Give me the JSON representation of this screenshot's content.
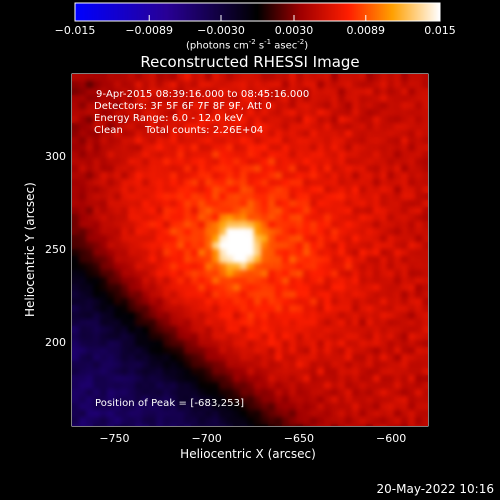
{
  "colorbar": {
    "ticks": [
      "-0.015",
      "-0.0089",
      "-0.0030",
      "0.0030",
      "0.0089",
      "0.015"
    ],
    "tick_values": [
      -0.015,
      -0.0089,
      -0.003,
      0.003,
      0.0089,
      0.015
    ],
    "label_main": "(photons cm",
    "label_exp1": "-2",
    "label_mid1": " s",
    "label_exp2": "-1",
    "label_mid2": " asec",
    "label_exp3": "-2",
    "label_end": ")",
    "range": [
      -0.015,
      0.015
    ],
    "colormap": "RHESSI red-yellow"
  },
  "chart_data": {
    "type": "heatmap",
    "title": "Reconstructed RHESSI Image",
    "xlabel": "Heliocentric X (arcsec)",
    "ylabel": "Heliocentric Y (arcsec)",
    "xlim": [
      -773,
      -580
    ],
    "ylim": [
      155,
      345
    ],
    "x_ticks": [
      -750,
      -700,
      -650,
      -600
    ],
    "x_tick_labels": [
      "−750",
      "−700",
      "−650",
      "−600"
    ],
    "y_ticks": [
      200,
      250,
      300
    ],
    "y_tick_labels": [
      "200",
      "250",
      "300"
    ],
    "peak": {
      "x": -683,
      "y": 253
    },
    "grid": false
  },
  "info": {
    "time_range": "9-Apr-2015 08:39:16.000 to 08:45:16.000",
    "detectors": "Detectors: 3F 5F 6F 7F 8F 9F, Att 0",
    "energy": "Energy Range: 6.0 - 12.0 keV",
    "method": "Clean",
    "counts": "Total counts: 2.26E+04",
    "peak_label": "Position of Peak = [-683,253]"
  },
  "footer": {
    "timestamp": "20-May-2022 10:16"
  }
}
